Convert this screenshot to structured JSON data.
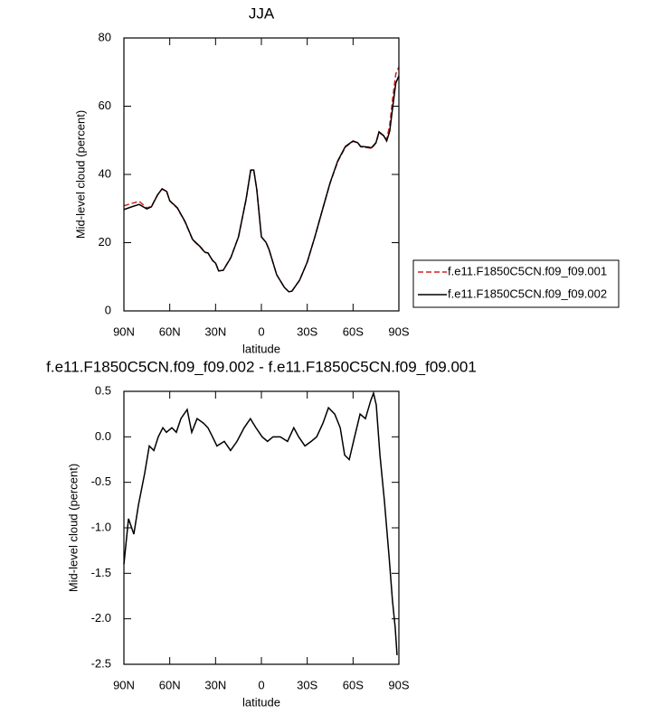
{
  "chart_data": [
    {
      "type": "line",
      "title": "JJA",
      "xlabel": "latitude",
      "ylabel": "Mid-level cloud (percent)",
      "x": [
        90,
        85,
        80,
        75,
        72,
        68,
        65,
        62,
        60,
        55,
        50,
        45,
        40,
        37,
        35,
        32,
        30,
        28,
        25,
        20,
        15,
        10,
        7,
        5,
        3,
        0,
        -3,
        -5,
        -10,
        -15,
        -18,
        -20,
        -25,
        -30,
        -35,
        -40,
        -45,
        -50,
        -55,
        -60,
        -63,
        -65,
        -70,
        -72,
        -75,
        -77,
        -80,
        -82,
        -84,
        -86,
        -88,
        -90
      ],
      "series": [
        {
          "name": "f.e11.F1850C5CN.f09_f09.001",
          "color": "#d62020",
          "line_style": "dashed",
          "values": [
            30.8,
            31.5,
            32.1,
            30.2,
            30.6,
            34,
            35.7,
            35,
            32.2,
            30.1,
            26.1,
            20.8,
            18.7,
            17.1,
            17,
            14.8,
            14.1,
            11.8,
            11.9,
            15.7,
            21.7,
            32.7,
            41.2,
            41.3,
            35.5,
            21.7,
            20.1,
            18,
            10.6,
            6.9,
            5.6,
            5.8,
            9,
            14.3,
            21.7,
            29.7,
            37.5,
            43.8,
            48,
            49.7,
            49.3,
            48.1,
            47.8,
            47.6,
            49.2,
            52.3,
            51.3,
            50.2,
            54.5,
            62.5,
            69.5,
            71.5
          ]
        },
        {
          "name": "f.e11.F1850C5CN.f09_f09.002",
          "color": "#000000",
          "line_style": "solid",
          "values": [
            29.7,
            30.5,
            31.2,
            29.9,
            30.5,
            34,
            35.8,
            35,
            32.3,
            30.2,
            26.2,
            20.9,
            18.8,
            17.2,
            17,
            14.8,
            14,
            11.7,
            11.9,
            15.6,
            21.7,
            32.8,
            41.3,
            41.3,
            35.5,
            21.7,
            20.1,
            18,
            10.6,
            6.9,
            5.6,
            5.8,
            9,
            14.3,
            21.7,
            29.7,
            37.6,
            44,
            48.2,
            49.8,
            49.3,
            48.2,
            48,
            47.8,
            49.3,
            52.5,
            51.4,
            49.8,
            52.7,
            59.9,
            66.8,
            68.9
          ]
        }
      ],
      "xlim": [
        90,
        -90
      ],
      "xticks": [
        {
          "value": 90,
          "label": "90N"
        },
        {
          "value": 60,
          "label": "60N"
        },
        {
          "value": 30,
          "label": "30N"
        },
        0,
        {
          "value": -30,
          "label": "30S"
        },
        {
          "value": -60,
          "label": "60S"
        },
        {
          "value": -90,
          "label": "90S"
        }
      ],
      "ylim": [
        0,
        80
      ],
      "yticks": [
        0,
        20,
        40,
        60,
        80
      ],
      "legend": "right"
    },
    {
      "type": "line",
      "title": "f.e11.F1850C5CN.f09_f09.002 - f.e11.F1850C5CN.f09_f09.001",
      "xlabel": "latitude",
      "ylabel": "Mid-level cloud (percent)",
      "x": [
        90,
        87,
        83.5,
        80.5,
        76.4,
        73.4,
        70.4,
        67.5,
        64.5,
        62.2,
        58.6,
        55.7,
        52.7,
        48.6,
        45.6,
        42.1,
        37.9,
        35,
        32,
        29.1,
        24.3,
        20.2,
        16,
        11.3,
        7.2,
        3.6,
        -0.5,
        -4,
        -7.6,
        -12.4,
        -17.1,
        -21.2,
        -24.4,
        -28.5,
        -32.6,
        -36.2,
        -40.3,
        -43.9,
        -48,
        -51.6,
        -54.5,
        -57.5,
        -61,
        -64.6,
        -68.1,
        -71.6,
        -73.4,
        -75.2,
        -77.6,
        -80.5,
        -83.5,
        -85.8,
        -87.6,
        -88.8
      ],
      "values": [
        -1.4,
        -0.9,
        -1.07,
        -0.75,
        -0.4,
        -0.1,
        -0.15,
        0.0,
        0.1,
        0.05,
        0.1,
        0.05,
        0.2,
        0.3,
        0.05,
        0.2,
        0.15,
        0.1,
        0.0,
        -0.1,
        -0.05,
        -0.15,
        -0.05,
        0.1,
        0.2,
        0.1,
        0.0,
        -0.05,
        0.0,
        0.0,
        -0.05,
        0.1,
        0.0,
        -0.1,
        -0.05,
        0.0,
        0.15,
        0.32,
        0.25,
        0.1,
        -0.2,
        -0.25,
        0.0,
        0.25,
        0.2,
        0.4,
        0.48,
        0.35,
        -0.2,
        -0.7,
        -1.3,
        -1.8,
        -2.1,
        -2.4
      ],
      "color": "#000000",
      "line_style": "solid",
      "xlim": [
        90,
        -90
      ],
      "xticks": [
        {
          "value": 90,
          "label": "90N"
        },
        {
          "value": 60,
          "label": "60N"
        },
        {
          "value": 30,
          "label": "30N"
        },
        0,
        {
          "value": -30,
          "label": "30S"
        },
        {
          "value": -60,
          "label": "60S"
        },
        {
          "value": -90,
          "label": "90S"
        }
      ],
      "ylim": [
        -2.5,
        0.5
      ],
      "yticks": [
        0.5,
        {
          "value": 0,
          "label": "0.0"
        },
        -0.5,
        {
          "value": -1,
          "label": "-1.0"
        },
        -1.5,
        {
          "value": -2,
          "label": "-2.0"
        },
        -2.5
      ]
    }
  ]
}
